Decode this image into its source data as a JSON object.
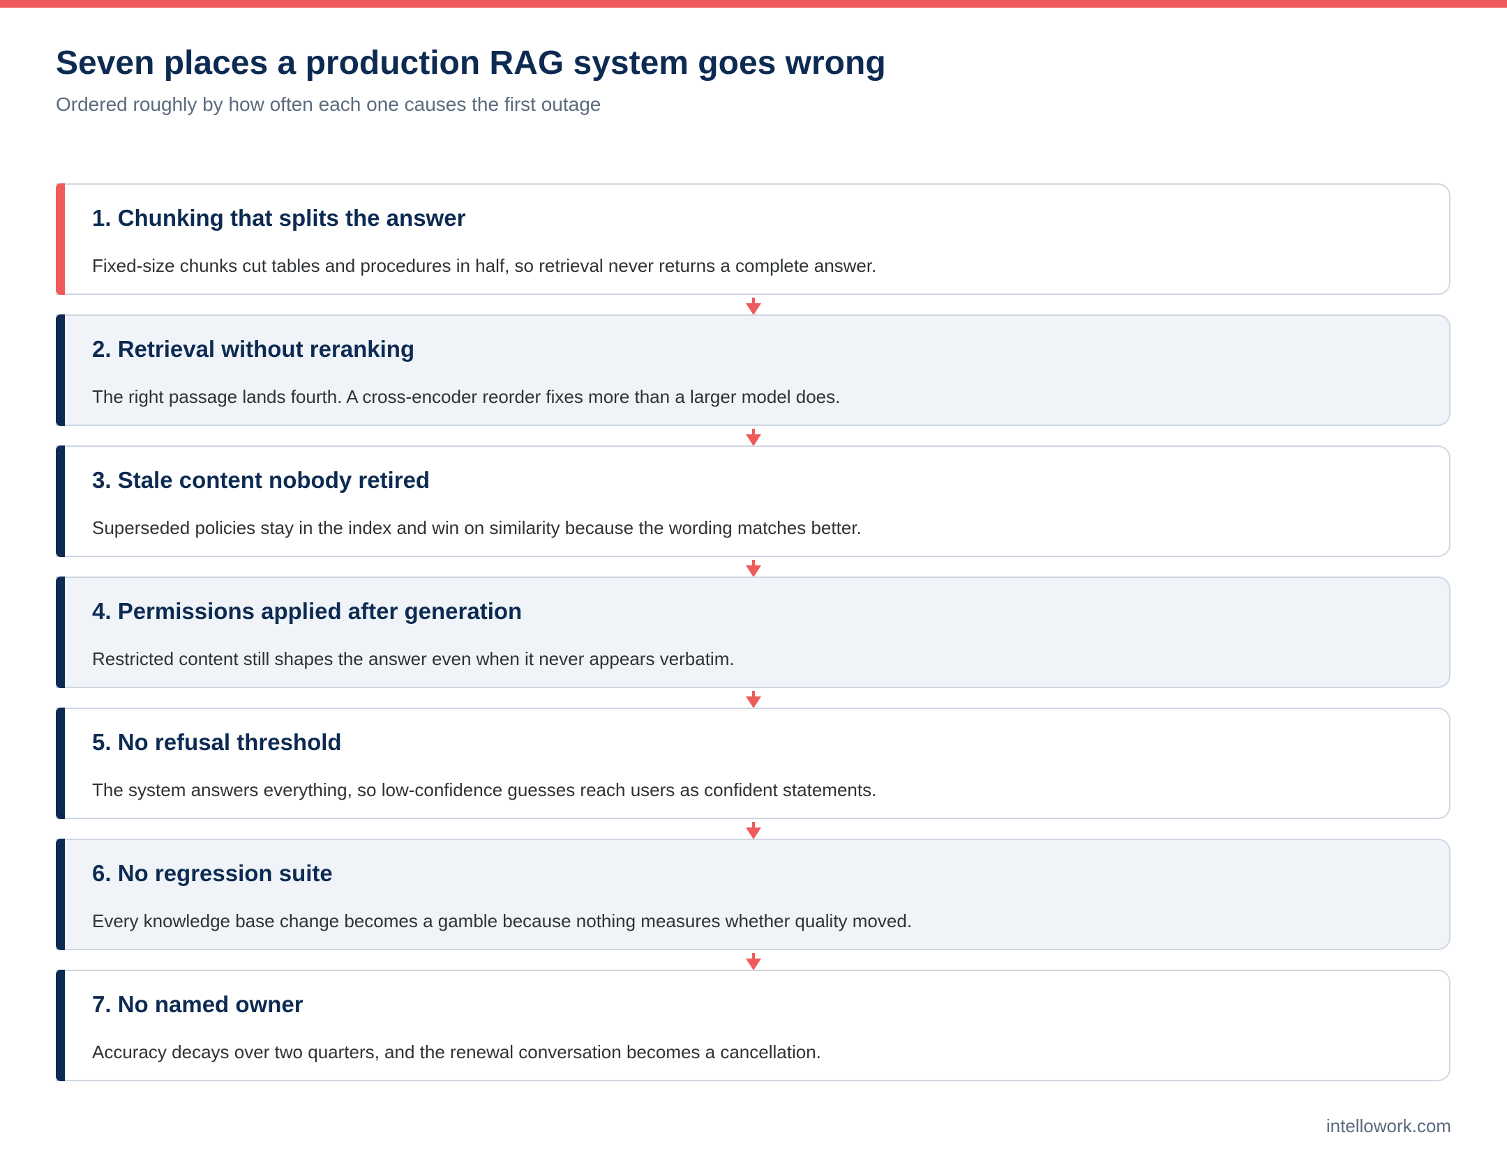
{
  "header": {
    "title": "Seven places a production RAG system goes wrong",
    "subtitle": "Ordered roughly by how often each one causes the first outage"
  },
  "steps": [
    {
      "title": "1. Chunking that splits the answer",
      "description": "Fixed-size chunks cut tables and procedures in half, so retrieval never returns a complete answer."
    },
    {
      "title": "2. Retrieval without reranking",
      "description": "The right passage lands fourth. A cross-encoder reorder fixes more than a larger model does."
    },
    {
      "title": "3. Stale content nobody retired",
      "description": "Superseded policies stay in the index and win on similarity because the wording matches better."
    },
    {
      "title": "4. Permissions applied after generation",
      "description": "Restricted content still shapes the answer even when it never appears verbatim."
    },
    {
      "title": "5. No refusal threshold",
      "description": "The system answers everything, so low-confidence guesses reach users as confident statements."
    },
    {
      "title": "6. No regression suite",
      "description": "Every knowledge base change becomes a gamble because nothing measures whether quality moved."
    },
    {
      "title": "7. No named owner",
      "description": "Accuracy decays over two quarters, and the renewal conversation becomes a cancellation."
    }
  ],
  "footer": {
    "domain": "intellowork.com"
  },
  "colors": {
    "accent_red": "#ef5b5b",
    "navy": "#0d2b52",
    "card_alt_bg": "#f0f4f8",
    "card_border": "#cfd8e2"
  }
}
